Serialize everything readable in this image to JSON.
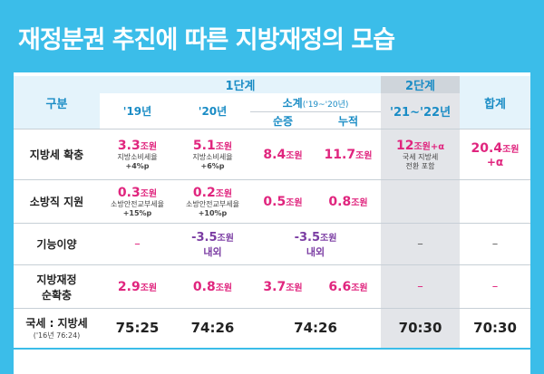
{
  "title": "재정분권 추진에 따른 지방재정의 모습",
  "colors": {
    "frame": "#3bbde9",
    "pink": "#e0257e",
    "purple": "#7b3da3",
    "header_blue": "#1a8cc5"
  },
  "header": {
    "col_category": "구분",
    "stage1": "1단계",
    "stage2": "2단계",
    "total": "합계",
    "y19": "'19년",
    "y20": "'20년",
    "subtotal": "소계('19~'20년)",
    "subtotal_main": "소계",
    "subtotal_range": "('19~'20년)",
    "net": "순증",
    "cumulative": "누적",
    "y21_22": "'21~'22년"
  },
  "rows": {
    "local_tax": {
      "label": "지방세 확충",
      "y19_value": "3.3",
      "y19_unit": "조원",
      "y19_note1": "지방소비세율",
      "y19_note2": "+4%p",
      "y20_value": "5.1",
      "y20_unit": "조원",
      "y20_note1": "지방소비세율",
      "y20_note2": "+6%p",
      "net_value": "8.4",
      "net_unit": "조원",
      "cum_value": "11.7",
      "cum_unit": "조원",
      "stage2_value": "12",
      "stage2_unit": "조원+α",
      "stage2_note1": "국세 지방세",
      "stage2_note2": "전환 포함",
      "total_value": "20.4",
      "total_unit": "조원",
      "total_extra": "+α"
    },
    "fire": {
      "label": "소방직 지원",
      "y19_value": "0.3",
      "y19_unit": "조원",
      "y19_note1": "소방안전교부세율",
      "y19_note2": "+15%p",
      "y20_value": "0.2",
      "y20_unit": "조원",
      "y20_note1": "소방안전교부세율",
      "y20_note2": "+10%p",
      "net_value": "0.5",
      "net_unit": "조원",
      "cum_value": "0.8",
      "cum_unit": "조원"
    },
    "transfer": {
      "label": "기능이양",
      "y19_value": "–",
      "y20_value": "-3.5",
      "y20_unit": "조원",
      "y20_note": "내외",
      "sub_value": "-3.5",
      "sub_unit": "조원",
      "sub_note": "내외",
      "stage2_value": "–",
      "total_value": "–"
    },
    "net_expand": {
      "label1": "지방재정",
      "label2": "순확충",
      "y19_value": "2.9",
      "y19_unit": "조원",
      "y20_value": "0.8",
      "y20_unit": "조원",
      "net_value": "3.7",
      "net_unit": "조원",
      "cum_value": "6.6",
      "cum_unit": "조원",
      "stage2_value": "–",
      "total_value": "–"
    },
    "ratio": {
      "label": "국세 : 지방세",
      "label_note": "('16년 76:24)",
      "y19_value": "75:25",
      "y20_value": "74:26",
      "sub_value": "74:26",
      "stage2_value": "70:30",
      "total_value": "70:30"
    }
  }
}
